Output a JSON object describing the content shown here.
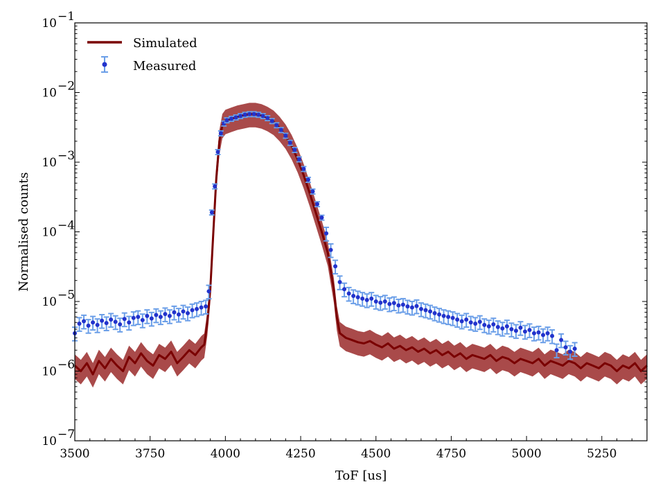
{
  "chart_data": {
    "type": "line",
    "title": "",
    "xlabel": "ToF [us]",
    "ylabel": "Normalised counts",
    "xlim": [
      3500,
      5400
    ],
    "ylim": [
      1e-07,
      0.1
    ],
    "yscale": "log",
    "x_ticks": [
      3500,
      3750,
      4000,
      4250,
      4500,
      4750,
      5000,
      5250
    ],
    "x_tick_labels": [
      "3500",
      "3750",
      "4000",
      "4250",
      "4500",
      "4750",
      "5000",
      "5250"
    ],
    "y_ticks": [
      {
        "value": 1e-07,
        "base": "10",
        "exp": "−7"
      },
      {
        "value": 1e-06,
        "base": "10",
        "exp": "−6"
      },
      {
        "value": 1e-05,
        "base": "10",
        "exp": "−5"
      },
      {
        "value": 0.0001,
        "base": "10",
        "exp": "−4"
      },
      {
        "value": 0.001,
        "base": "10",
        "exp": "−3"
      },
      {
        "value": 0.01,
        "base": "10",
        "exp": "−2"
      },
      {
        "value": 0.1,
        "base": "10",
        "exp": "−1"
      }
    ],
    "grid": false,
    "legend_position": "top-left",
    "colors": {
      "simulated": "#7a0000",
      "simulated_band": "#9a2a2a",
      "measured_marker": "#2233cc",
      "measured_error": "#6a9ee8"
    },
    "series": [
      {
        "name": "Simulated",
        "style": "line with uncertainty band",
        "x": [
          3500,
          3520,
          3540,
          3560,
          3580,
          3600,
          3620,
          3640,
          3660,
          3680,
          3700,
          3720,
          3740,
          3760,
          3780,
          3800,
          3820,
          3840,
          3860,
          3880,
          3900,
          3920,
          3930,
          3940,
          3950,
          3960,
          3970,
          3980,
          3990,
          4000,
          4020,
          4040,
          4060,
          4080,
          4100,
          4120,
          4140,
          4160,
          4180,
          4200,
          4220,
          4240,
          4260,
          4280,
          4300,
          4320,
          4340,
          4360,
          4370,
          4380,
          4400,
          4420,
          4440,
          4460,
          4480,
          4500,
          4520,
          4540,
          4560,
          4580,
          4600,
          4620,
          4640,
          4660,
          4680,
          4700,
          4720,
          4740,
          4760,
          4780,
          4800,
          4820,
          4840,
          4860,
          4880,
          4900,
          4920,
          4940,
          4960,
          4980,
          5000,
          5020,
          5040,
          5060,
          5080,
          5100,
          5120,
          5140,
          5160,
          5180,
          5200,
          5220,
          5240,
          5260,
          5280,
          5300,
          5320,
          5340,
          5360,
          5380,
          5400
        ],
        "y": [
          1.2e-06,
          1e-06,
          1.3e-06,
          9e-07,
          1.4e-06,
          1.1e-06,
          1.5e-06,
          1.2e-06,
          1e-06,
          1.6e-06,
          1.3e-06,
          1.8e-06,
          1.4e-06,
          1.2e-06,
          1.7e-06,
          1.5e-06,
          1.9e-06,
          1.3e-06,
          1.6e-06,
          2e-06,
          1.7e-06,
          2.2e-06,
          2.4e-06,
          5e-06,
          1.5e-05,
          0.0001,
          0.0006,
          0.002,
          0.0034,
          0.0039,
          0.0042,
          0.0045,
          0.0047,
          0.0049,
          0.0049,
          0.0047,
          0.0043,
          0.0038,
          0.0031,
          0.0024,
          0.0017,
          0.0011,
          0.00065,
          0.00036,
          0.00019,
          0.0001,
          5e-05,
          1.5e-05,
          6e-06,
          3.5e-06,
          3e-06,
          2.8e-06,
          2.6e-06,
          2.5e-06,
          2.7e-06,
          2.4e-06,
          2.2e-06,
          2.5e-06,
          2.1e-06,
          2.3e-06,
          2e-06,
          2.2e-06,
          1.9e-06,
          2.1e-06,
          1.8e-06,
          2e-06,
          1.7e-06,
          1.9e-06,
          1.6e-06,
          1.8e-06,
          1.5e-06,
          1.7e-06,
          1.6e-06,
          1.5e-06,
          1.7e-06,
          1.4e-06,
          1.6e-06,
          1.5e-06,
          1.3e-06,
          1.5e-06,
          1.4e-06,
          1.3e-06,
          1.5e-06,
          1.2e-06,
          1.4e-06,
          1.3e-06,
          1.2e-06,
          1.4e-06,
          1.3e-06,
          1.1e-06,
          1.3e-06,
          1.2e-06,
          1.1e-06,
          1.3e-06,
          1.2e-06,
          1e-06,
          1.2e-06,
          1.1e-06,
          1.3e-06,
          1e-06,
          1.2e-06
        ]
      },
      {
        "name": "Measured",
        "style": "markers with error bars",
        "x": [
          3500,
          3515,
          3530,
          3545,
          3560,
          3575,
          3590,
          3605,
          3620,
          3635,
          3650,
          3665,
          3680,
          3695,
          3710,
          3725,
          3740,
          3755,
          3770,
          3785,
          3800,
          3815,
          3830,
          3845,
          3860,
          3875,
          3890,
          3905,
          3920,
          3935,
          3945,
          3955,
          3965,
          3975,
          3985,
          3995,
          4005,
          4020,
          4035,
          4050,
          4065,
          4080,
          4095,
          4110,
          4125,
          4140,
          4155,
          4170,
          4185,
          4200,
          4215,
          4230,
          4245,
          4260,
          4275,
          4290,
          4305,
          4320,
          4335,
          4350,
          4365,
          4380,
          4395,
          4410,
          4425,
          4440,
          4455,
          4470,
          4485,
          4500,
          4515,
          4530,
          4545,
          4560,
          4575,
          4590,
          4605,
          4620,
          4635,
          4650,
          4665,
          4680,
          4695,
          4710,
          4725,
          4740,
          4755,
          4770,
          4785,
          4800,
          4815,
          4830,
          4845,
          4860,
          4875,
          4890,
          4905,
          4920,
          4935,
          4950,
          4965,
          4980,
          4995,
          5010,
          5025,
          5040,
          5055,
          5070,
          5085,
          5100,
          5115,
          5130,
          5145,
          5160
        ],
        "y": [
          3.5e-06,
          4.8e-06,
          5.2e-06,
          4.5e-06,
          5e-06,
          4.6e-06,
          5.3e-06,
          4.9e-06,
          5.5e-06,
          5.1e-06,
          4.7e-06,
          5.6e-06,
          5e-06,
          5.8e-06,
          6e-06,
          5.4e-06,
          6.2e-06,
          5.7e-06,
          6.4e-06,
          6e-06,
          6.6e-06,
          6.2e-06,
          7e-06,
          6.5e-06,
          7.2e-06,
          6.8e-06,
          7.5e-06,
          7.8e-06,
          8.2e-06,
          8.5e-06,
          1.4e-05,
          0.00019,
          0.00045,
          0.0014,
          0.0026,
          0.0036,
          0.004,
          0.0042,
          0.0044,
          0.0046,
          0.0048,
          0.0049,
          0.0049,
          0.0048,
          0.0046,
          0.0043,
          0.0039,
          0.0034,
          0.0029,
          0.0024,
          0.0019,
          0.0015,
          0.0011,
          0.0008,
          0.00056,
          0.00038,
          0.00025,
          0.00016,
          9.5e-05,
          5.5e-05,
          3.2e-05,
          1.9e-05,
          1.5e-05,
          1.3e-05,
          1.2e-05,
          1.15e-05,
          1.1e-05,
          1.05e-05,
          1.1e-05,
          1e-05,
          9.6e-06,
          1e-05,
          9.2e-06,
          9.5e-06,
          8.8e-06,
          9e-06,
          8.5e-06,
          8.2e-06,
          8.6e-06,
          7.8e-06,
          7.5e-06,
          7.2e-06,
          6.8e-06,
          6.5e-06,
          6.2e-06,
          6e-06,
          5.8e-06,
          5.5e-06,
          5.2e-06,
          5.5e-06,
          5e-06,
          4.8e-06,
          5.1e-06,
          4.6e-06,
          4.4e-06,
          4.7e-06,
          4.3e-06,
          4.1e-06,
          4.4e-06,
          4e-06,
          3.8e-06,
          4.2e-06,
          3.7e-06,
          3.9e-06,
          3.5e-06,
          3.6e-06,
          3.3e-06,
          3.5e-06,
          3.2e-06,
          2e-06,
          2.8e-06,
          2.2e-06,
          1.9e-06,
          2.1e-06
        ]
      }
    ],
    "legend": [
      "Simulated",
      "Measured"
    ]
  }
}
